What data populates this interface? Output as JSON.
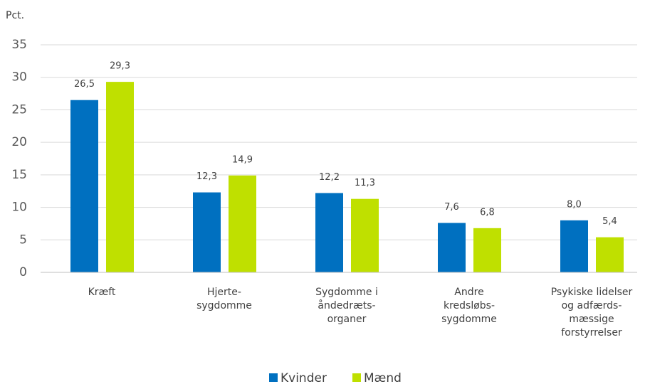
{
  "chart_data": {
    "type": "bar",
    "y_label": "Pct.",
    "categories": [
      [
        "Kræft"
      ],
      [
        "Hjerte-",
        "sygdomme"
      ],
      [
        "Sygdomme i",
        "åndedræts-",
        "organer"
      ],
      [
        "Andre",
        "kredsløbs-",
        "sygdomme"
      ],
      [
        "Psykiske lidelser",
        "og adfærds-",
        "mæssige",
        "forstyrrelser"
      ]
    ],
    "series": [
      {
        "name": "Kvinder",
        "color": "#0070c0",
        "values": [
          26.5,
          12.3,
          12.2,
          7.6,
          8.0
        ],
        "value_labels": [
          "26,5",
          "12,3",
          "12,2",
          "7,6",
          "8,0"
        ]
      },
      {
        "name": "Mænd",
        "color": "#bfe000",
        "values": [
          29.3,
          14.9,
          11.3,
          6.8,
          5.4
        ],
        "value_labels": [
          "29,3",
          "14,9",
          "11,3",
          "6,8",
          "5,4"
        ]
      }
    ],
    "ylim": [
      0,
      35
    ],
    "yticks": [
      0,
      5,
      10,
      15,
      20,
      25,
      30,
      35
    ],
    "grid": true,
    "legend": "bottom"
  }
}
